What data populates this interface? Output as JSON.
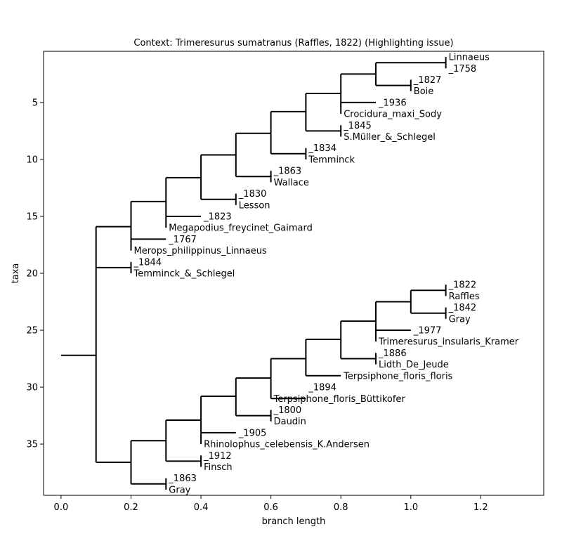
{
  "chart_data": {
    "type": "tree",
    "title": "Context: Trimeresurus sumatranus (Raffles, 1822) (Highlighting issue)",
    "xlabel": "branch length",
    "ylabel": "taxa",
    "xlim": [
      -0.05,
      1.38
    ],
    "ylim": [
      39.5,
      0.5
    ],
    "x_ticks": [
      0.0,
      0.2,
      0.4,
      0.6,
      0.8,
      1.0,
      1.2
    ],
    "y_ticks": [
      5,
      10,
      15,
      20,
      25,
      30,
      35
    ],
    "grid": false,
    "branches": [
      [
        0.0,
        27.2,
        0.1,
        27.2
      ],
      [
        0.1,
        15.9,
        0.1,
        36.6
      ],
      [
        0.1,
        15.9,
        0.2,
        15.9
      ],
      [
        0.2,
        13.7,
        0.2,
        18.0
      ],
      [
        0.2,
        13.7,
        0.3,
        13.7
      ],
      [
        0.3,
        11.6,
        0.3,
        16.0
      ],
      [
        0.3,
        11.6,
        0.4,
        11.6
      ],
      [
        0.4,
        9.6,
        0.4,
        13.5
      ],
      [
        0.4,
        9.6,
        0.5,
        9.6
      ],
      [
        0.5,
        7.7,
        0.5,
        11.5
      ],
      [
        0.5,
        7.7,
        0.6,
        7.7
      ],
      [
        0.6,
        5.8,
        0.6,
        9.5
      ],
      [
        0.6,
        5.8,
        0.7,
        5.8
      ],
      [
        0.7,
        4.2,
        0.7,
        7.5
      ],
      [
        0.7,
        4.2,
        0.8,
        4.2
      ],
      [
        0.8,
        2.5,
        0.8,
        6.0
      ],
      [
        0.8,
        2.5,
        0.9,
        2.5
      ],
      [
        0.9,
        1.5,
        0.9,
        3.5
      ],
      [
        0.9,
        1.5,
        1.1,
        1.5
      ],
      [
        1.1,
        1.0,
        1.1,
        2.0
      ],
      [
        0.9,
        3.5,
        1.0,
        3.5
      ],
      [
        1.0,
        3.0,
        1.0,
        4.0
      ],
      [
        0.8,
        5.0,
        0.9,
        5.0
      ],
      [
        0.7,
        7.5,
        0.8,
        7.5
      ],
      [
        0.8,
        7.0,
        0.8,
        8.0
      ],
      [
        0.6,
        9.5,
        0.7,
        9.5
      ],
      [
        0.7,
        9.0,
        0.7,
        10.0
      ],
      [
        0.5,
        11.5,
        0.6,
        11.5
      ],
      [
        0.6,
        11.0,
        0.6,
        12.0
      ],
      [
        0.4,
        13.5,
        0.5,
        13.5
      ],
      [
        0.5,
        13.0,
        0.5,
        14.0
      ],
      [
        0.3,
        15.0,
        0.4,
        15.0
      ],
      [
        0.2,
        17.0,
        0.3,
        17.0
      ],
      [
        0.1,
        19.5,
        0.2,
        19.5
      ],
      [
        0.2,
        19.0,
        0.2,
        20.0
      ],
      [
        0.1,
        36.6,
        0.2,
        36.6
      ],
      [
        0.2,
        34.7,
        0.2,
        38.5
      ],
      [
        0.2,
        34.7,
        0.3,
        34.7
      ],
      [
        0.3,
        32.9,
        0.3,
        36.5
      ],
      [
        0.3,
        32.9,
        0.4,
        32.9
      ],
      [
        0.4,
        30.8,
        0.4,
        35.0
      ],
      [
        0.4,
        30.8,
        0.5,
        30.8
      ],
      [
        0.5,
        29.2,
        0.5,
        32.5
      ],
      [
        0.5,
        29.2,
        0.6,
        29.2
      ],
      [
        0.6,
        27.5,
        0.6,
        31.0
      ],
      [
        0.6,
        27.5,
        0.7,
        27.5
      ],
      [
        0.7,
        25.8,
        0.7,
        29.0
      ],
      [
        0.7,
        25.8,
        0.8,
        25.8
      ],
      [
        0.8,
        24.2,
        0.8,
        27.5
      ],
      [
        0.8,
        24.2,
        0.9,
        24.2
      ],
      [
        0.9,
        22.5,
        0.9,
        26.0
      ],
      [
        0.9,
        22.5,
        1.0,
        22.5
      ],
      [
        1.0,
        21.5,
        1.0,
        23.5
      ],
      [
        1.0,
        21.5,
        1.1,
        21.5
      ],
      [
        1.1,
        21.0,
        1.1,
        22.0
      ],
      [
        1.0,
        23.5,
        1.1,
        23.5
      ],
      [
        1.1,
        23.0,
        1.1,
        24.0
      ],
      [
        0.9,
        25.0,
        1.0,
        25.0
      ],
      [
        0.8,
        27.5,
        0.9,
        27.5
      ],
      [
        0.9,
        27.0,
        0.9,
        28.0
      ],
      [
        0.7,
        29.0,
        0.8,
        29.0
      ],
      [
        0.6,
        31.0,
        0.7,
        31.0
      ],
      [
        0.5,
        32.5,
        0.6,
        32.5
      ],
      [
        0.6,
        32.0,
        0.6,
        33.0
      ],
      [
        0.4,
        34.0,
        0.5,
        34.0
      ],
      [
        0.3,
        36.5,
        0.4,
        36.5
      ],
      [
        0.4,
        36.0,
        0.4,
        37.0
      ],
      [
        0.2,
        38.5,
        0.3,
        38.5
      ],
      [
        0.3,
        38.0,
        0.3,
        39.0
      ]
    ],
    "leaf_labels": [
      {
        "x": 1.1,
        "y": 1.0,
        "text": "Linnaeus"
      },
      {
        "x": 1.1,
        "y": 2.0,
        "text": "_1758"
      },
      {
        "x": 1.0,
        "y": 3.0,
        "text": "_1827"
      },
      {
        "x": 1.0,
        "y": 4.0,
        "text": "Boie"
      },
      {
        "x": 0.9,
        "y": 5.0,
        "text": "_1936"
      },
      {
        "x": 0.8,
        "y": 6.0,
        "text": "Crocidura_maxi_Sody"
      },
      {
        "x": 0.8,
        "y": 7.0,
        "text": "_1845"
      },
      {
        "x": 0.8,
        "y": 8.0,
        "text": "S.Müller_&_Schlegel"
      },
      {
        "x": 0.7,
        "y": 9.0,
        "text": "_1834"
      },
      {
        "x": 0.7,
        "y": 10.0,
        "text": "Temminck"
      },
      {
        "x": 0.6,
        "y": 11.0,
        "text": "_1863"
      },
      {
        "x": 0.6,
        "y": 12.0,
        "text": "Wallace"
      },
      {
        "x": 0.5,
        "y": 13.0,
        "text": "_1830"
      },
      {
        "x": 0.5,
        "y": 14.0,
        "text": "Lesson"
      },
      {
        "x": 0.4,
        "y": 15.0,
        "text": "_1823"
      },
      {
        "x": 0.3,
        "y": 16.0,
        "text": "Megapodius_freycinet_Gaimard"
      },
      {
        "x": 0.3,
        "y": 17.0,
        "text": "_1767"
      },
      {
        "x": 0.2,
        "y": 18.0,
        "text": "Merops_philippinus_Linnaeus"
      },
      {
        "x": 0.2,
        "y": 19.0,
        "text": "_1844"
      },
      {
        "x": 0.2,
        "y": 20.0,
        "text": "Temminck_&_Schlegel"
      },
      {
        "x": 1.1,
        "y": 21.0,
        "text": "_1822"
      },
      {
        "x": 1.1,
        "y": 22.0,
        "text": "Raffles"
      },
      {
        "x": 1.1,
        "y": 23.0,
        "text": "_1842"
      },
      {
        "x": 1.1,
        "y": 24.0,
        "text": "Gray"
      },
      {
        "x": 1.0,
        "y": 25.0,
        "text": "_1977"
      },
      {
        "x": 0.9,
        "y": 26.0,
        "text": "Trimeresurus_insularis_Kramer"
      },
      {
        "x": 0.9,
        "y": 27.0,
        "text": "_1886"
      },
      {
        "x": 0.9,
        "y": 28.0,
        "text": "Lidth_De_Jeude"
      },
      {
        "x": 0.8,
        "y": 29.0,
        "text": "Terpsiphone_floris_floris"
      },
      {
        "x": 0.7,
        "y": 30.0,
        "text": "_1894"
      },
      {
        "x": 0.6,
        "y": 31.0,
        "text": "Terpsiphone_floris_Büttikofer"
      },
      {
        "x": 0.6,
        "y": 32.0,
        "text": "_1800"
      },
      {
        "x": 0.6,
        "y": 33.0,
        "text": "Daudin"
      },
      {
        "x": 0.5,
        "y": 34.0,
        "text": "_1905"
      },
      {
        "x": 0.4,
        "y": 35.0,
        "text": "Rhinolophus_celebensis_K.Andersen"
      },
      {
        "x": 0.4,
        "y": 36.0,
        "text": "_1912"
      },
      {
        "x": 0.4,
        "y": 37.0,
        "text": "Finsch"
      },
      {
        "x": 0.3,
        "y": 38.0,
        "text": "_1863"
      },
      {
        "x": 0.3,
        "y": 39.0,
        "text": "Gray"
      }
    ]
  }
}
